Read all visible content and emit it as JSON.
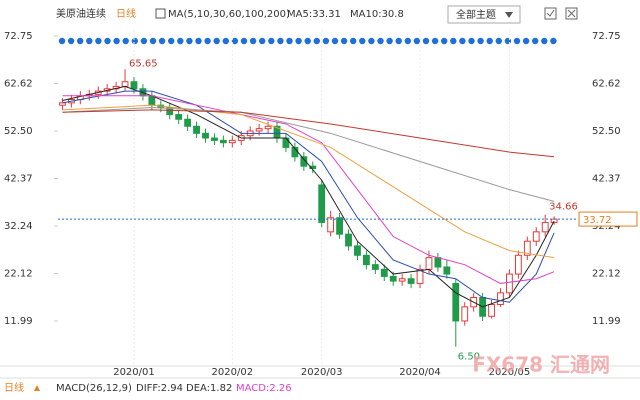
{
  "header": {
    "title": "美原油连续",
    "period": "日线",
    "indicator": "MA(5,10,30,60,100,200)",
    "ma5": "MA5:33.31",
    "ma10": "MA10:30.8",
    "theme": "全部主题"
  },
  "chart_data": {
    "type": "candlestick",
    "ylim": [
      4.74,
      74.03
    ],
    "yticks": [
      72.75,
      62.62,
      {
        "value": 52.5,
        "label": "52.50"
      },
      42.37,
      32.24,
      22.12,
      11.99
    ],
    "xlim": [
      -0.5,
      57
    ],
    "xticks": [
      {
        "value": 8,
        "label": "2020/01"
      },
      {
        "value": 19,
        "label": "2020/02"
      },
      {
        "value": 29,
        "label": "2020/03"
      },
      {
        "value": 40,
        "label": "2020/04"
      },
      {
        "value": 50,
        "label": "2020/05"
      }
    ],
    "up_color": "#e8393a",
    "down_color": "#1f9b4a",
    "open": [
      58.0,
      58.5,
      59.2,
      60.0,
      60.3,
      61.0,
      61.5,
      62.0,
      63.0,
      61.5,
      60.0,
      58.0,
      57.5,
      56.0,
      55.0,
      53.5,
      52.0,
      51.0,
      50.5,
      50.0,
      50.5,
      51.5,
      52.5,
      53.0,
      53.5,
      51.0,
      49.0,
      47.0,
      45.0,
      41.0,
      31.0,
      34.0,
      30.5,
      28.0,
      26.0,
      24.0,
      23.0,
      21.5,
      20.5,
      21.0,
      20.0,
      23.0,
      25.5,
      23.5,
      20.0,
      12.0,
      15.0,
      17.0,
      13.0,
      15.5,
      18.0,
      22.0,
      26.0,
      29.0,
      31.0,
      33.0
    ],
    "high": [
      59.5,
      60.2,
      61,
      61.3,
      62,
      62.5,
      63,
      65.65,
      64,
      62.5,
      61,
      59,
      58.5,
      57,
      56,
      54.5,
      53,
      52,
      51.5,
      51.5,
      52.5,
      53.5,
      54,
      54.5,
      54.5,
      52,
      50,
      48,
      46,
      42,
      35.5,
      35,
      31.5,
      29,
      27,
      25,
      24,
      22.5,
      22,
      22,
      24,
      27,
      26.5,
      25,
      21,
      16,
      18,
      18,
      16.5,
      19,
      23,
      27,
      30,
      32,
      34.66,
      34.3
    ],
    "low": [
      57,
      57.5,
      58.2,
      59,
      59.3,
      60,
      60.5,
      61,
      60.5,
      59,
      57,
      56.5,
      55,
      54,
      52.5,
      51,
      50,
      49.5,
      49,
      49,
      49.5,
      50.5,
      51.5,
      52,
      50,
      48,
      46,
      44,
      43.5,
      32,
      30,
      29.5,
      27,
      25,
      23,
      22,
      20.5,
      19.5,
      19.5,
      19,
      19,
      22,
      22.5,
      21,
      6.5,
      11,
      14,
      12,
      12.5,
      15,
      17,
      21,
      25,
      28,
      30,
      32.5
    ],
    "close": [
      58.5,
      59.2,
      60.0,
      60.3,
      61.0,
      61.5,
      62.0,
      63.0,
      61.5,
      60.0,
      58.0,
      57.5,
      56.0,
      55.0,
      53.5,
      52.0,
      51.0,
      50.5,
      50.0,
      50.5,
      51.5,
      52.5,
      53.0,
      53.5,
      51.0,
      49.0,
      47.0,
      45.0,
      44.5,
      33.0,
      34.0,
      30.5,
      28.0,
      26.0,
      24.0,
      23.0,
      21.5,
      20.5,
      21.0,
      20.0,
      23.0,
      25.5,
      23.5,
      22.0,
      12.0,
      15.0,
      17.0,
      13.0,
      15.5,
      18.0,
      22.0,
      26.0,
      29.0,
      31.0,
      33.0,
      33.72
    ],
    "low_label": "6.50",
    "series": [
      {
        "color": "#222222",
        "x": [
          0,
          7,
          10,
          15,
          20,
          25,
          29,
          33,
          37,
          41,
          44,
          47,
          50,
          53,
          55
        ],
        "values": [
          59,
          62,
          60,
          56,
          51,
          51,
          42,
          29,
          22,
          23,
          18,
          15,
          17,
          26,
          33.31
        ]
      },
      {
        "color": "#2b4fa8",
        "x": [
          0,
          7,
          10,
          15,
          20,
          25,
          29,
          33,
          37,
          41,
          44,
          47,
          50,
          53,
          55
        ],
        "values": [
          58.5,
          61,
          61,
          58,
          52,
          52,
          46,
          34,
          25,
          22,
          21,
          17,
          16,
          22,
          30.8
        ]
      },
      {
        "color": "#e040c8",
        "x": [
          0,
          10,
          20,
          25,
          29,
          33,
          37,
          41,
          45,
          49,
          53,
          55
        ],
        "values": [
          60,
          60,
          56,
          54,
          50,
          40,
          30,
          26,
          24,
          20,
          21,
          22.5
        ]
      },
      {
        "color": "#f0a040",
        "x": [
          0,
          10,
          20,
          30,
          35,
          40,
          45,
          50,
          55
        ],
        "values": [
          57,
          58,
          56,
          49,
          43,
          37,
          31,
          27,
          25.5
        ]
      },
      {
        "color": "#999999",
        "x": [
          0,
          10,
          20,
          30,
          40,
          50,
          55
        ],
        "values": [
          56.5,
          57.5,
          56.5,
          52,
          46,
          40,
          37.5
        ]
      },
      {
        "color": "#c0392b",
        "x": [
          0,
          10,
          20,
          30,
          40,
          50,
          55
        ],
        "values": [
          56.5,
          57,
          56.5,
          54,
          51,
          48,
          47
        ]
      }
    ]
  },
  "footer": {
    "period": "日线",
    "macd": "MACD(26,12,9)",
    "diff": "DIFF:2.94",
    "dea": "DEA:1.82",
    "macd_value": "MACD:2.26"
  },
  "watermark": "FX678 汇通网"
}
